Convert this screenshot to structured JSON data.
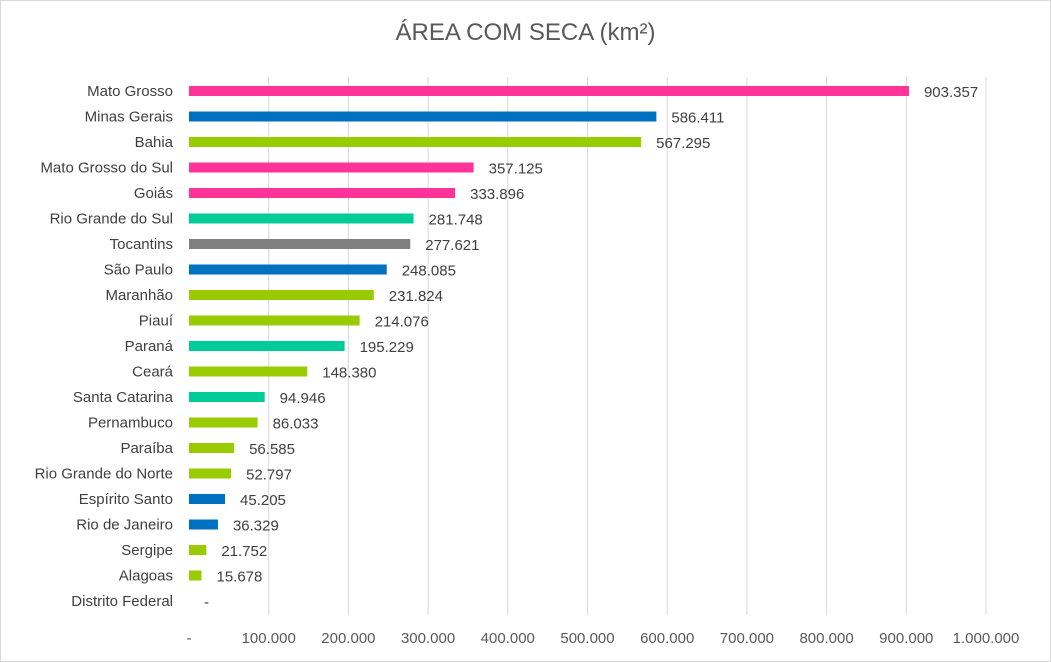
{
  "chart_data": {
    "type": "bar",
    "orientation": "horizontal",
    "title": "ÁREA COM SECA (km²)",
    "categories": [
      "Mato Grosso",
      "Minas Gerais",
      "Bahia",
      "Mato Grosso do Sul",
      "Goiás",
      "Rio Grande do Sul",
      "Tocantins",
      "São Paulo",
      "Maranhão",
      "Piauí",
      "Paraná",
      "Ceará",
      "Santa Catarina",
      "Pernambuco",
      "Paraíba",
      "Rio Grande do Norte",
      "Espírito Santo",
      "Rio de Janeiro",
      "Sergipe",
      "Alagoas",
      "Distrito Federal"
    ],
    "values": [
      903357,
      586411,
      567295,
      357125,
      333896,
      281748,
      277621,
      248085,
      231824,
      214076,
      195229,
      148380,
      94946,
      86033,
      56585,
      52797,
      45205,
      36329,
      21752,
      15678,
      0
    ],
    "value_labels": [
      "903.357",
      "586.411",
      "567.295",
      "357.125",
      "333.896",
      "281.748",
      "277.621",
      "248.085",
      "231.824",
      "214.076",
      "195.229",
      "148.380",
      "94.946",
      "86.033",
      "56.585",
      "52.797",
      "45.205",
      "36.329",
      "21.752",
      "15.678",
      "-"
    ],
    "bar_colors": [
      "#ff3399",
      "#0070c0",
      "#99cc00",
      "#ff3399",
      "#ff3399",
      "#00cc99",
      "#808080",
      "#0070c0",
      "#99cc00",
      "#99cc00",
      "#00cc99",
      "#99cc00",
      "#00cc99",
      "#99cc00",
      "#99cc00",
      "#99cc00",
      "#0070c0",
      "#0070c0",
      "#99cc00",
      "#99cc00",
      "#99cc00"
    ],
    "xlim": [
      0,
      1000000
    ],
    "x_ticks": [
      0,
      100000,
      200000,
      300000,
      400000,
      500000,
      600000,
      700000,
      800000,
      900000,
      1000000
    ],
    "x_tick_labels": [
      "-",
      "100.000",
      "200.000",
      "300.000",
      "400.000",
      "500.000",
      "600.000",
      "700.000",
      "800.000",
      "900.000",
      "1.000.000"
    ],
    "grid": true,
    "xlabel": "",
    "ylabel": ""
  }
}
